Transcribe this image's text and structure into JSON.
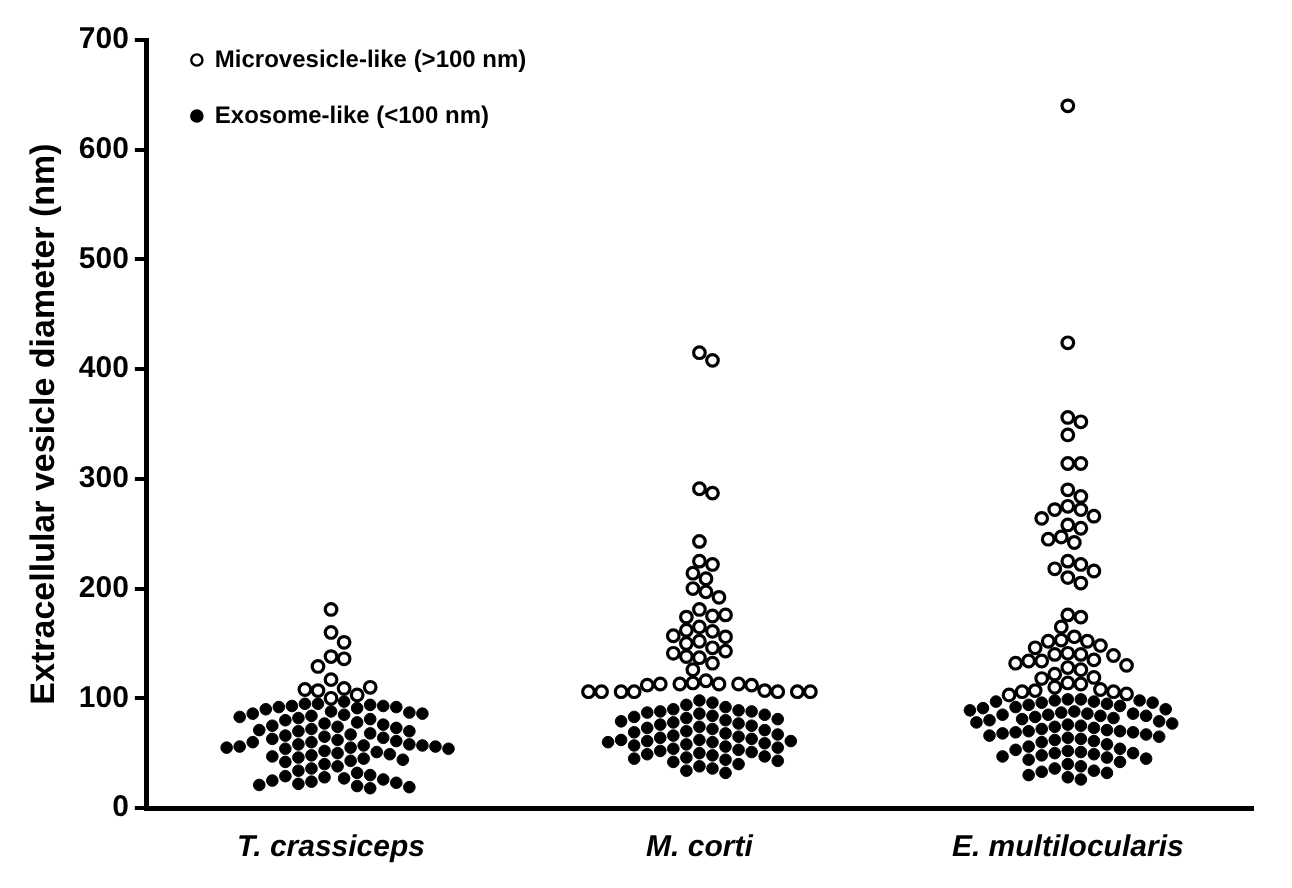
{
  "chart_data": {
    "type": "scatter",
    "ylabel": "Extracellular vesicle diameter (nm)",
    "categories": [
      "T. crassiceps",
      "M. corti",
      "E. multilocularis"
    ],
    "ylim": [
      0,
      700
    ],
    "yticks": [
      0,
      100,
      200,
      300,
      400,
      500,
      600,
      700
    ],
    "grid": false,
    "legend": "top left",
    "marker": "circle",
    "series": [
      {
        "name": "Microvesicle-like (>100 nm)",
        "color": "#000000",
        "x": [
          "T. crassiceps",
          "T. crassiceps",
          "T. crassiceps",
          "T. crassiceps",
          "T. crassiceps",
          "T. crassiceps",
          "T. crassiceps",
          "T. crassiceps",
          "T. crassiceps",
          "T. crassiceps",
          "T. crassiceps",
          "T. crassiceps",
          "T. crassiceps",
          "M. corti",
          "M. corti",
          "M. corti",
          "M. corti",
          "M. corti",
          "M. corti",
          "M. corti",
          "M. corti",
          "M. corti",
          "M. corti",
          "M. corti",
          "M. corti",
          "M. corti",
          "M. corti",
          "M. corti",
          "M. corti",
          "M. corti",
          "M. corti",
          "M. corti",
          "M. corti",
          "M. corti",
          "M. corti",
          "M. corti",
          "M. corti",
          "M. corti",
          "M. corti",
          "M. corti",
          "M. corti",
          "M. corti",
          "M. corti",
          "M. corti",
          "M. corti",
          "M. corti",
          "M. corti",
          "M. corti",
          "M. corti",
          "M. corti",
          "M. corti",
          "M. corti",
          "M. corti",
          "M. corti",
          "M. corti",
          "M. corti",
          "M. corti",
          "M. corti",
          "M. corti",
          "E. multilocularis",
          "E. multilocularis",
          "E. multilocularis",
          "E. multilocularis",
          "E. multilocularis",
          "E. multilocularis",
          "E. multilocularis",
          "E. multilocularis",
          "E. multilocularis",
          "E. multilocularis",
          "E. multilocularis",
          "E. multilocularis",
          "E. multilocularis",
          "E. multilocularis",
          "E. multilocularis",
          "E. multilocularis",
          "E. multilocularis",
          "E. multilocularis",
          "E. multilocularis",
          "E. multilocularis",
          "E. multilocularis",
          "E. multilocularis",
          "E. multilocularis",
          "E. multilocularis",
          "E. multilocularis",
          "E. multilocularis",
          "E. multilocularis",
          "E. multilocularis",
          "E. multilocularis",
          "E. multilocularis",
          "E. multilocularis",
          "E. multilocularis",
          "E. multilocularis",
          "E. multilocularis",
          "E. multilocularis",
          "E. multilocularis",
          "E. multilocularis",
          "E. multilocularis",
          "E. multilocularis",
          "E. multilocularis",
          "E. multilocularis",
          "E. multilocularis",
          "E. multilocularis",
          "E. multilocularis",
          "E. multilocularis",
          "E. multilocularis",
          "E. multilocularis",
          "E. multilocularis",
          "E. multilocularis",
          "E. multilocularis",
          "E. multilocularis",
          "E. multilocularis",
          "E. multilocularis",
          "E. multilocularis",
          "E. multilocularis",
          "E. multilocularis",
          "E. multilocularis"
        ],
        "values": [
          181,
          160,
          151,
          138,
          136,
          129,
          117,
          109,
          107,
          100,
          103,
          108,
          110,
          415,
          408,
          291,
          287,
          243,
          225,
          222,
          214,
          209,
          200,
          197,
          192,
          181,
          175,
          174,
          176,
          165,
          161,
          162,
          156,
          157,
          152,
          150,
          146,
          143,
          141,
          137,
          138,
          132,
          126,
          116,
          114,
          113,
          113,
          113,
          113,
          112,
          112,
          107,
          106,
          106,
          106,
          106,
          106,
          106,
          106,
          640,
          424,
          356,
          352,
          340,
          314,
          314,
          290,
          284,
          275,
          272,
          272,
          266,
          264,
          258,
          255,
          247,
          245,
          242,
          225,
          222,
          218,
          216,
          210,
          205,
          176,
          174,
          165,
          156,
          153,
          152,
          152,
          148,
          146,
          141,
          140,
          140,
          139,
          135,
          134,
          134,
          132,
          130,
          128,
          126,
          122,
          119,
          118,
          114,
          113,
          110,
          108,
          107,
          106,
          106,
          104,
          103
        ]
      },
      {
        "name": "Exosome-like (<100 nm)",
        "color": "#000000",
        "x": [
          "T. crassiceps",
          "T. crassiceps",
          "T. crassiceps",
          "T. crassiceps",
          "T. crassiceps",
          "T. crassiceps",
          "T. crassiceps",
          "T. crassiceps",
          "T. crassiceps",
          "T. crassiceps",
          "T. crassiceps",
          "T. crassiceps",
          "T. crassiceps",
          "T. crassiceps",
          "T. crassiceps",
          "T. crassiceps",
          "T. crassiceps",
          "T. crassiceps",
          "T. crassiceps",
          "T. crassiceps",
          "T. crassiceps",
          "T. crassiceps",
          "T. crassiceps",
          "T. crassiceps",
          "T. crassiceps",
          "T. crassiceps",
          "T. crassiceps",
          "T. crassiceps",
          "T. crassiceps",
          "T. crassiceps",
          "T. crassiceps",
          "T. crassiceps",
          "T. crassiceps",
          "T. crassiceps",
          "T. crassiceps",
          "T. crassiceps",
          "T. crassiceps",
          "T. crassiceps",
          "T. crassiceps",
          "T. crassiceps",
          "T. crassiceps",
          "T. crassiceps",
          "T. crassiceps",
          "T. crassiceps",
          "T. crassiceps",
          "T. crassiceps",
          "T. crassiceps",
          "T. crassiceps",
          "T. crassiceps",
          "T. crassiceps",
          "T. crassiceps",
          "T. crassiceps",
          "T. crassiceps",
          "T. crassiceps",
          "T. crassiceps",
          "T. crassiceps",
          "T. crassiceps",
          "T. crassiceps",
          "T. crassiceps",
          "T. crassiceps",
          "T. crassiceps",
          "T. crassiceps",
          "T. crassiceps",
          "T. crassiceps",
          "T. crassiceps",
          "T. crassiceps",
          "T. crassiceps",
          "T. crassiceps",
          "T. crassiceps",
          "T. crassiceps",
          "T. crassiceps",
          "T. crassiceps",
          "T. crassiceps",
          "T. crassiceps",
          "T. crassiceps",
          "T. crassiceps",
          "T. crassiceps",
          "T. crassiceps",
          "T. crassiceps",
          "M. corti",
          "M. corti",
          "M. corti",
          "M. corti",
          "M. corti",
          "M. corti",
          "M. corti",
          "M. corti",
          "M. corti",
          "M. corti",
          "M. corti",
          "M. corti",
          "M. corti",
          "M. corti",
          "M. corti",
          "M. corti",
          "M. corti",
          "M. corti",
          "M. corti",
          "M. corti",
          "M. corti",
          "M. corti",
          "M. corti",
          "M. corti",
          "M. corti",
          "M. corti",
          "M. corti",
          "M. corti",
          "M. corti",
          "M. corti",
          "M. corti",
          "M. corti",
          "M. corti",
          "M. corti",
          "M. corti",
          "M. corti",
          "M. corti",
          "M. corti",
          "M. corti",
          "M. corti",
          "M. corti",
          "M. corti",
          "M. corti",
          "M. corti",
          "M. corti",
          "M. corti",
          "M. corti",
          "M. corti",
          "M. corti",
          "M. corti",
          "M. corti",
          "M. corti",
          "M. corti",
          "M. corti",
          "M. corti",
          "M. corti",
          "M. corti",
          "M. corti",
          "M. corti",
          "M. corti",
          "M. corti",
          "M. corti",
          "E. multilocularis",
          "E. multilocularis",
          "E. multilocularis",
          "E. multilocularis",
          "E. multilocularis",
          "E. multilocularis",
          "E. multilocularis",
          "E. multilocularis",
          "E. multilocularis",
          "E. multilocularis",
          "E. multilocularis",
          "E. multilocularis",
          "E. multilocularis",
          "E. multilocularis",
          "E. multilocularis",
          "E. multilocularis",
          "E. multilocularis",
          "E. multilocularis",
          "E. multilocularis",
          "E. multilocularis",
          "E. multilocularis",
          "E. multilocularis",
          "E. multilocularis",
          "E. multilocularis",
          "E. multilocularis",
          "E. multilocularis",
          "E. multilocularis",
          "E. multilocularis",
          "E. multilocularis",
          "E. multilocularis",
          "E. multilocularis",
          "E. multilocularis",
          "E. multilocularis",
          "E. multilocularis",
          "E. multilocularis",
          "E. multilocularis",
          "E. multilocularis",
          "E. multilocularis",
          "E. multilocularis",
          "E. multilocularis",
          "E. multilocularis",
          "E. multilocularis",
          "E. multilocularis",
          "E. multilocularis",
          "E. multilocularis",
          "E. multilocularis",
          "E. multilocularis",
          "E. multilocularis",
          "E. multilocularis",
          "E. multilocularis",
          "E. multilocularis",
          "E. multilocularis",
          "E. multilocularis",
          "E. multilocularis",
          "E. multilocularis",
          "E. multilocularis",
          "E. multilocularis",
          "E. multilocularis",
          "E. multilocularis",
          "E. multilocularis",
          "E. multilocularis",
          "E. multilocularis",
          "E. multilocularis",
          "E. multilocularis",
          "E. multilocularis",
          "E. multilocularis",
          "E. multilocularis",
          "E. multilocularis",
          "E. multilocularis",
          "E. multilocularis",
          "E. multilocularis",
          "E. multilocularis",
          "E. multilocularis"
        ],
        "values": [
          97,
          95,
          95,
          94,
          93,
          93,
          92,
          92,
          91,
          90,
          88,
          87,
          86,
          86,
          85,
          84,
          83,
          82,
          81,
          80,
          78,
          77,
          76,
          75,
          74,
          73,
          72,
          71,
          70,
          70,
          68,
          67,
          66,
          65,
          64,
          63,
          62,
          61,
          60,
          60,
          58,
          58,
          57,
          57,
          56,
          56,
          55,
          55,
          54,
          54,
          52,
          51,
          50,
          49,
          48,
          47,
          46,
          45,
          44,
          43,
          42,
          40,
          38,
          36,
          34,
          32,
          30,
          29,
          28,
          27,
          26,
          25,
          24,
          23,
          22,
          21,
          20,
          19,
          18,
          98,
          96,
          94,
          92,
          90,
          89,
          88,
          88,
          87,
          86,
          85,
          84,
          83,
          82,
          81,
          80,
          79,
          78,
          77,
          76,
          75,
          74,
          73,
          72,
          71,
          70,
          69,
          68,
          67,
          66,
          65,
          64,
          63,
          62,
          62,
          61,
          61,
          60,
          60,
          59,
          58,
          57,
          56,
          55,
          54,
          53,
          52,
          51,
          50,
          49,
          48,
          47,
          46,
          45,
          44,
          43,
          42,
          40,
          38,
          36,
          34,
          32,
          99,
          99,
          98,
          98,
          97,
          97,
          96,
          96,
          95,
          94,
          93,
          92,
          91,
          90,
          89,
          88,
          87,
          86,
          86,
          85,
          85,
          84,
          84,
          83,
          82,
          81,
          80,
          79,
          78,
          77,
          76,
          75,
          74,
          73,
          72,
          71,
          70,
          70,
          69,
          69,
          68,
          67,
          66,
          65,
          64,
          63,
          62,
          61,
          60,
          58,
          56,
          54,
          53,
          52,
          51,
          50,
          50,
          49,
          48,
          47,
          46,
          45,
          44,
          42,
          40,
          38,
          36,
          34,
          33,
          32,
          30,
          28,
          26
        ]
      }
    ]
  }
}
